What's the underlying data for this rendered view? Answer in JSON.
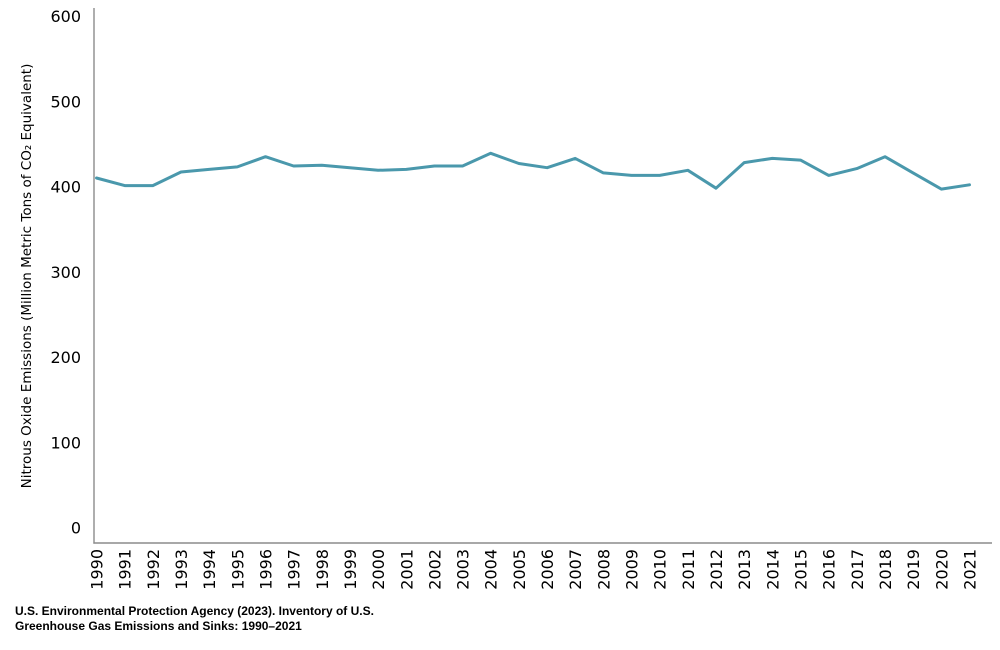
{
  "chart_data": {
    "type": "line",
    "title": "",
    "xlabel": "",
    "ylabel": "Nitrous Oxide Emissions (Million Metric Tons of CO₂ Equivalent)",
    "x": [
      "1990",
      "1991",
      "1992",
      "1993",
      "1994",
      "1995",
      "1996",
      "1997",
      "1998",
      "1999",
      "2000",
      "2001",
      "2002",
      "2003",
      "2004",
      "2005",
      "2006",
      "2007",
      "2008",
      "2009",
      "2010",
      "2011",
      "2012",
      "2013",
      "2014",
      "2015",
      "2016",
      "2017",
      "2018",
      "2019",
      "2020",
      "2021"
    ],
    "series": [
      {
        "name": "Nitrous Oxide Emissions",
        "values": [
          410,
          401,
          401,
          417,
          420,
          423,
          435,
          424,
          425,
          422,
          419,
          420,
          424,
          424,
          439,
          427,
          422,
          433,
          416,
          413,
          413,
          419,
          398,
          428,
          433,
          431,
          413,
          421,
          435,
          416,
          397,
          402
        ]
      }
    ],
    "yticks": [
      0,
      100,
      200,
      300,
      400,
      500,
      600
    ],
    "ylim": [
      0,
      600
    ],
    "grid": "off",
    "legend": "none"
  },
  "colors": {
    "line": "#4a98ac",
    "axis": "#8c8c8c",
    "text": "#000000",
    "background": "#ffffff"
  },
  "source": {
    "line1": "U.S. Environmental Protection Agency (2023). Inventory of U.S.",
    "line2": "Greenhouse Gas Emissions and Sinks: 1990–2021"
  }
}
